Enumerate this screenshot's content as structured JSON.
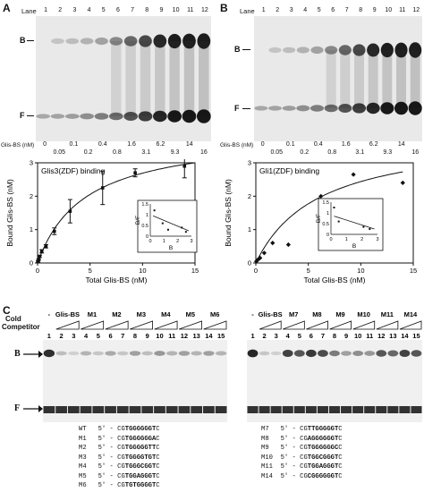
{
  "panelA": {
    "letter": "A",
    "lane_label": "Lane",
    "lanes": [
      "1",
      "2",
      "3",
      "4",
      "5",
      "6",
      "7",
      "8",
      "9",
      "10",
      "11",
      "12"
    ],
    "band_B": "B",
    "band_F": "F",
    "conc_label": "Glis-BS (nM)",
    "conc_top": [
      "0",
      "0.1",
      "0.4",
      "1.6",
      "6.2",
      "14"
    ],
    "conc_bottom": [
      "0.05",
      "0.2",
      "0.8",
      "3.1",
      "9.3",
      "16"
    ]
  },
  "panelB": {
    "letter": "B",
    "lane_label": "Lane",
    "lanes": [
      "1",
      "2",
      "3",
      "4",
      "5",
      "6",
      "7",
      "8",
      "9",
      "10",
      "11",
      "12"
    ],
    "band_B": "B",
    "band_F": "F",
    "conc_label": "Glis-BS (nM)",
    "conc_top": [
      "0",
      "0.1",
      "0.4",
      "1.6",
      "6.2",
      "14"
    ],
    "conc_bottom": [
      "0.05",
      "0.2",
      "0.8",
      "3.1",
      "9.3",
      "16"
    ]
  },
  "panelC": {
    "letter": "C",
    "cold_label": "Cold",
    "competitor_label": "Competitor",
    "left_groups": [
      "-",
      "Glis-BS",
      "M1",
      "M2",
      "M3",
      "M4",
      "M5",
      "M6"
    ],
    "right_groups": [
      "-",
      "Glis-BS",
      "M7",
      "M8",
      "M9",
      "M10",
      "M11",
      "M14"
    ],
    "lanes": [
      "1",
      "2",
      "3",
      "4",
      "5",
      "6",
      "7",
      "8",
      "9",
      "10",
      "11",
      "12",
      "13",
      "14",
      "15"
    ],
    "band_B": "B",
    "band_F": "F",
    "seq_prefix": "5' - CG",
    "seq_suffix": "C",
    "left_seqs": [
      {
        "name": "WT",
        "core": "TGGGGGGT"
      },
      {
        "name": "M1",
        "core": "TGGGGGGA"
      },
      {
        "name": "M2",
        "core": "TGGGGGTT"
      },
      {
        "name": "M3",
        "core": "TGGGGTGT"
      },
      {
        "name": "M4",
        "core": "TGGGCGGT"
      },
      {
        "name": "M5",
        "core": "TGGAGGGT"
      },
      {
        "name": "M6",
        "core": "TGTGGGGT"
      }
    ],
    "right_seqs": [
      {
        "name": "M7",
        "core": "TTGGGGGT"
      },
      {
        "name": "M8",
        "core": "AGGGGGGT"
      },
      {
        "name": "M9",
        "core": "TGGGGGGC"
      },
      {
        "name": "M10",
        "core": "TGGCGGGT"
      },
      {
        "name": "M11",
        "core": "TGGAGGGT"
      },
      {
        "name": "M14",
        "core": "CGGGGGGT"
      }
    ]
  },
  "chart_data": [
    {
      "type": "scatter",
      "title": "Glis3(ZDF) binding",
      "xlabel": "Total Glis-BS (nM)",
      "ylabel": "Bound Glis-BS (nM)",
      "xlim": [
        0,
        15
      ],
      "ylim": [
        0,
        3
      ],
      "xticks": [
        "0",
        "5",
        "10",
        "15"
      ],
      "yticks": [
        "0",
        "1",
        "2",
        "3"
      ],
      "x": [
        0.05,
        0.1,
        0.2,
        0.4,
        0.8,
        1.6,
        3.1,
        6.2,
        9.3,
        14
      ],
      "y": [
        0.05,
        0.1,
        0.2,
        0.35,
        0.5,
        0.95,
        1.55,
        2.25,
        2.7,
        2.9
      ],
      "err": [
        0.02,
        0.02,
        0.03,
        0.05,
        0.05,
        0.1,
        0.35,
        0.5,
        0.12,
        0.35
      ],
      "inset": {
        "xlabel": "B",
        "ylabel": "B/F",
        "xlim": [
          0,
          3
        ],
        "ylim": [
          0,
          1.5
        ],
        "xticks": [
          "0",
          "1",
          "2",
          "3"
        ],
        "yticks": [
          "0",
          "0.5",
          "1",
          "1.5"
        ],
        "x": [
          0.3,
          0.9,
          1.3,
          2.3,
          2.6
        ],
        "y": [
          1.2,
          0.6,
          0.3,
          0.4,
          0.2
        ]
      }
    },
    {
      "type": "scatter",
      "title": "Gli1(ZDF) binding",
      "xlabel": "Total Glis-BS (nM)",
      "ylabel": "Bound Glis-BS (nM)",
      "xlim": [
        0,
        15
      ],
      "ylim": [
        0,
        3
      ],
      "xticks": [
        "0",
        "5",
        "10",
        "15"
      ],
      "yticks": [
        "0",
        "1",
        "2",
        "3"
      ],
      "x": [
        0.05,
        0.2,
        0.4,
        0.8,
        1.6,
        3.1,
        6.2,
        9.3,
        14
      ],
      "y": [
        0.05,
        0.1,
        0.15,
        0.3,
        0.6,
        0.55,
        2.0,
        2.65,
        2.4
      ],
      "inset": {
        "xlabel": "B",
        "ylabel": "B/F",
        "xlim": [
          0,
          3
        ],
        "ylim": [
          0,
          1.5
        ],
        "xticks": [
          "0",
          "1",
          "2",
          "3"
        ],
        "yticks": [
          "0",
          "0.5",
          "1",
          "1.5"
        ],
        "x": [
          0.2,
          0.5,
          2.1,
          2.5
        ],
        "y": [
          1.25,
          0.6,
          0.35,
          0.25
        ]
      }
    }
  ]
}
